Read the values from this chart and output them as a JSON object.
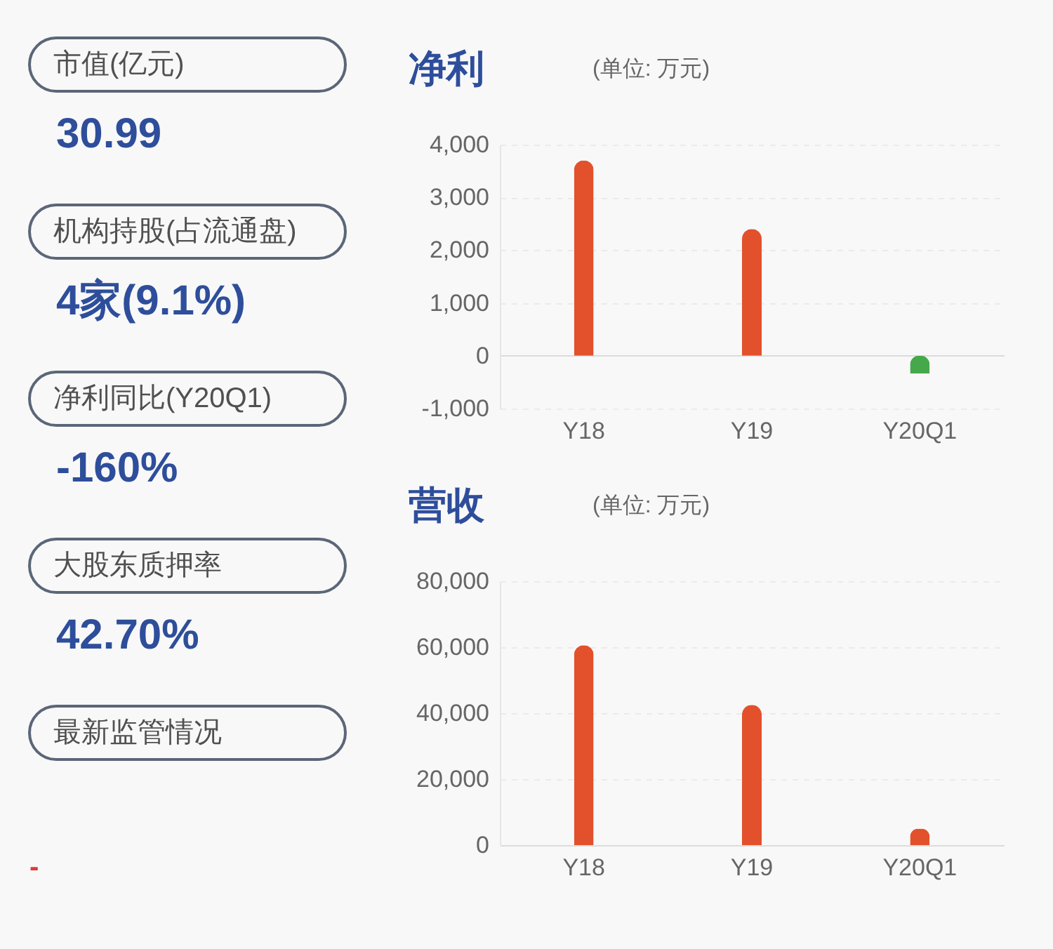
{
  "chart_data": [
    {
      "type": "other",
      "annotations": [
        "市值(亿元)",
        "30.99",
        "机构持股(占流通盘)",
        "4家(9.1%)",
        "净利同比(Y20Q1)",
        "-160%",
        "大股东质押率",
        "42.70%",
        "最新监管情况",
        "-"
      ]
    },
    {
      "type": "bar",
      "title": "净利",
      "subtitle": "(单位: 万元)",
      "categories": [
        "Y18",
        "Y19",
        "Y20Q1"
      ],
      "values": [
        3700,
        2400,
        -340
      ],
      "colors": [
        "#e2512b",
        "#e2512b",
        "#45a84a"
      ],
      "ylim": [
        -1000,
        4000
      ],
      "yticks": [
        {
          "value": -1000,
          "label": "-1,000"
        },
        0,
        {
          "value": 1000,
          "label": "1,000"
        },
        {
          "value": 2000,
          "label": "2,000"
        },
        {
          "value": 3000,
          "label": "3,000"
        },
        {
          "value": 4000,
          "label": "4,000"
        }
      ],
      "grid": "y"
    },
    {
      "type": "bar",
      "title": "营收",
      "subtitle": "(单位: 万元)",
      "categories": [
        "Y18",
        "Y19",
        "Y20Q1"
      ],
      "values": [
        60600,
        42500,
        5000
      ],
      "color": "#e2512b",
      "ylim": [
        0,
        80000
      ],
      "yticks": [
        0,
        {
          "value": 20000,
          "label": "20,000"
        },
        {
          "value": 40000,
          "label": "40,000"
        },
        {
          "value": 60000,
          "label": "60,000"
        },
        {
          "value": 80000,
          "label": "80,000"
        }
      ],
      "grid": "y"
    }
  ]
}
